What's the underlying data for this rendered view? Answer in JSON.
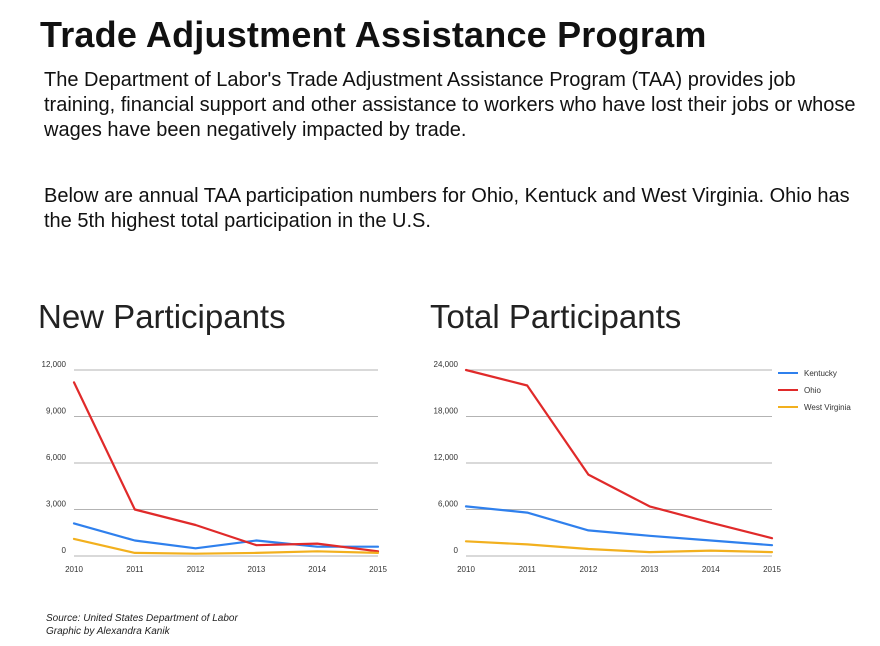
{
  "header": {
    "title": "Trade Adjustment Assistance Program",
    "intro": "The Department of Labor's Trade Adjustment Assistance Program (TAA) provides job training, financial support and other assistance to workers who have lost their jobs or whose wages have been negatively impacted by trade.",
    "intro2": "Below are annual TAA participation numbers for Ohio, Kentuck and West Virginia. Ohio has the 5th highest total participation in the U.S."
  },
  "colors": {
    "Kentucky": "#2f80ed",
    "Ohio": "#e02a2a",
    "West Virginia": "#f2b01e",
    "grid": "#9a9a9a"
  },
  "chart_data": [
    {
      "type": "line",
      "title": "New Participants",
      "x": [
        "2010",
        "2011",
        "2012",
        "2013",
        "2014",
        "2015"
      ],
      "ylim": [
        0,
        12000
      ],
      "yticks": [
        0,
        3000,
        6000,
        9000,
        12000
      ],
      "ytick_labels": [
        "0",
        "3,000",
        "6,000",
        "9,000",
        "12,000"
      ],
      "grid": true,
      "legend": "none",
      "series": [
        {
          "name": "Kentucky",
          "values": [
            2100,
            1000,
            500,
            1000,
            600,
            600
          ]
        },
        {
          "name": "Ohio",
          "values": [
            11200,
            3000,
            2000,
            700,
            800,
            300
          ]
        },
        {
          "name": "West Virginia",
          "values": [
            1100,
            200,
            150,
            200,
            300,
            200
          ]
        }
      ]
    },
    {
      "type": "line",
      "title": "Total Participants",
      "x": [
        "2010",
        "2011",
        "2012",
        "2013",
        "2014",
        "2015"
      ],
      "ylim": [
        0,
        24000
      ],
      "yticks": [
        0,
        6000,
        12000,
        18000,
        24000
      ],
      "ytick_labels": [
        "0",
        "6,000",
        "12,000",
        "18,000",
        "24,000"
      ],
      "grid": true,
      "legend": "top-right",
      "series": [
        {
          "name": "Kentucky",
          "values": [
            6400,
            5600,
            3300,
            2600,
            2000,
            1400
          ]
        },
        {
          "name": "Ohio",
          "values": [
            24000,
            22000,
            10500,
            6400,
            4300,
            2300
          ]
        },
        {
          "name": "West Virginia",
          "values": [
            1900,
            1500,
            900,
            500,
            700,
            500
          ]
        }
      ]
    }
  ],
  "footer": {
    "source": "Source: United States Department of Labor",
    "credit": "Graphic by Alexandra Kanik"
  }
}
